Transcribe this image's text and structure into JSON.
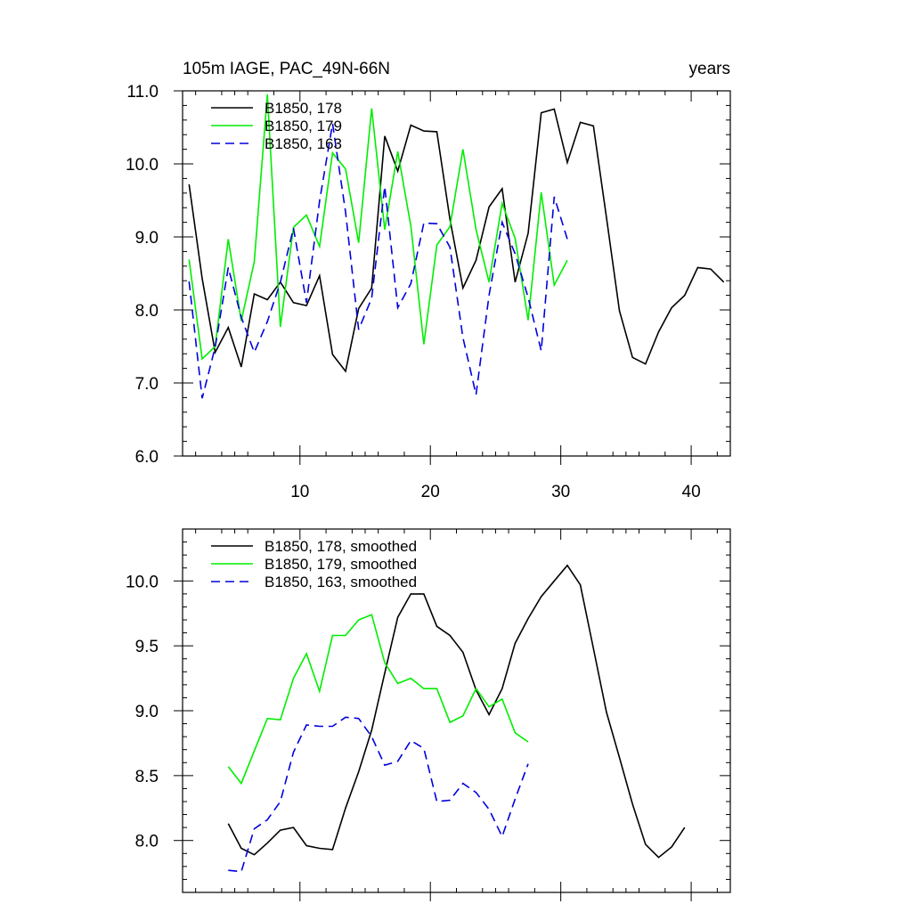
{
  "chart_data": [
    {
      "type": "line",
      "title": "105m IAGE, PAC_49N-66N",
      "title_right": "years",
      "xlim": [
        1,
        43
      ],
      "ylim": [
        6.0,
        11.0
      ],
      "yticks": [
        6.0,
        7.0,
        8.0,
        9.0,
        10.0,
        11.0
      ],
      "ytick_labels": [
        "6.0",
        "7.0",
        "8.0",
        "9.0",
        "10.0",
        "11.0"
      ],
      "xticks": [
        10,
        20,
        30,
        40
      ],
      "xtick_labels": [
        "10",
        "20",
        "30",
        "40"
      ],
      "legend_position": "top-left",
      "series": [
        {
          "name": "B1850, 178",
          "color": "#000000",
          "dash": "solid",
          "x": [
            1.5,
            2.5,
            3.5,
            4.5,
            5.5,
            6.5,
            7.5,
            8.5,
            9.5,
            10.5,
            11.5,
            12.5,
            13.5,
            14.5,
            15.5,
            16.5,
            17.5,
            18.5,
            19.5,
            20.5,
            21.5,
            22.5,
            23.5,
            24.5,
            25.5,
            26.5,
            27.5,
            28.5,
            29.5,
            30.5,
            31.5,
            32.5,
            33.5,
            34.5,
            35.5,
            36.5,
            37.5,
            38.5,
            39.5,
            40.5,
            41.5,
            42.5
          ],
          "y": [
            9.72,
            8.43,
            7.42,
            7.76,
            7.22,
            8.22,
            8.14,
            8.38,
            8.1,
            8.06,
            8.47,
            7.39,
            7.16,
            8.02,
            8.3,
            10.38,
            9.9,
            10.53,
            10.45,
            10.44,
            9.24,
            8.3,
            8.68,
            9.41,
            9.66,
            8.38,
            9.05,
            10.7,
            10.75,
            10.02,
            10.57,
            10.52,
            9.27,
            7.99,
            7.35,
            7.26,
            7.7,
            8.03,
            8.2,
            8.58,
            8.56,
            8.38
          ]
        },
        {
          "name": "B1850, 179",
          "color": "#00ee00",
          "dash": "solid",
          "x": [
            1.5,
            2.5,
            3.5,
            4.5,
            5.5,
            6.5,
            7.5,
            8.5,
            9.5,
            10.5,
            11.5,
            12.5,
            13.5,
            14.5,
            15.5,
            16.5,
            17.5,
            18.5,
            19.5,
            20.5,
            21.5,
            22.5,
            23.5,
            24.5,
            25.5,
            26.5,
            27.5,
            28.5,
            29.5,
            30.5
          ],
          "y": [
            8.69,
            7.33,
            7.5,
            8.97,
            7.85,
            8.66,
            10.95,
            7.77,
            9.13,
            9.3,
            8.87,
            10.15,
            9.93,
            8.92,
            10.76,
            9.1,
            10.17,
            9.15,
            7.53,
            8.89,
            9.14,
            10.2,
            9.1,
            8.38,
            9.46,
            8.98,
            7.86,
            9.61,
            8.34,
            8.68
          ]
        },
        {
          "name": "B1850, 163",
          "color": "#0000dd",
          "dash": "dashed",
          "x": [
            1.5,
            2.5,
            3.5,
            4.5,
            5.5,
            6.5,
            7.5,
            8.5,
            9.5,
            10.5,
            11.5,
            12.5,
            13.5,
            14.5,
            15.5,
            16.5,
            17.5,
            18.5,
            19.5,
            20.5,
            21.5,
            22.5,
            23.5,
            24.5,
            25.5,
            26.5,
            27.5,
            28.5,
            29.5,
            30.5
          ],
          "y": [
            8.39,
            6.79,
            7.49,
            8.58,
            7.9,
            7.42,
            7.84,
            8.38,
            9.12,
            8.1,
            9.49,
            10.55,
            9.34,
            7.73,
            8.16,
            9.69,
            8.03,
            8.36,
            9.19,
            9.18,
            8.86,
            7.62,
            6.84,
            8.2,
            9.2,
            8.77,
            8.17,
            7.44,
            9.55,
            8.97
          ]
        }
      ]
    },
    {
      "type": "line",
      "xlim": [
        1,
        43
      ],
      "ylim": [
        7.6,
        10.4
      ],
      "yticks": [
        8.0,
        8.5,
        9.0,
        9.5,
        10.0
      ],
      "ytick_labels": [
        "8.0",
        "8.5",
        "9.0",
        "9.5",
        "10.0"
      ],
      "xticks": [
        10,
        20,
        30,
        40
      ],
      "legend_position": "top-left",
      "series": [
        {
          "name": "B1850, 178, smoothed",
          "color": "#000000",
          "dash": "solid",
          "x": [
            4.5,
            5.5,
            6.5,
            7.5,
            8.5,
            9.5,
            10.5,
            11.5,
            12.5,
            13.5,
            14.5,
            15.5,
            16.5,
            17.5,
            18.5,
            19.5,
            20.5,
            21.5,
            22.5,
            23.5,
            24.5,
            25.5,
            26.5,
            27.5,
            28.5,
            29.5,
            30.5,
            31.5,
            32.5,
            33.5,
            34.5,
            35.5,
            36.5,
            37.5,
            38.5,
            39.5
          ],
          "y": [
            8.13,
            7.94,
            7.89,
            7.98,
            8.08,
            8.1,
            7.96,
            7.94,
            7.93,
            8.25,
            8.53,
            8.85,
            9.29,
            9.72,
            9.9,
            9.9,
            9.65,
            9.58,
            9.45,
            9.16,
            8.97,
            9.17,
            9.52,
            9.71,
            9.88,
            10.0,
            10.12,
            9.97,
            9.48,
            8.99,
            8.64,
            8.28,
            7.97,
            7.87,
            7.95,
            8.1
          ]
        },
        {
          "name": "B1850, 179, smoothed",
          "color": "#00ee00",
          "dash": "solid",
          "x": [
            4.5,
            5.5,
            6.5,
            7.5,
            8.5,
            9.5,
            10.5,
            11.5,
            12.5,
            13.5,
            14.5,
            15.5,
            16.5,
            17.5,
            18.5,
            19.5,
            20.5,
            21.5,
            22.5,
            23.5,
            24.5,
            25.5,
            26.5,
            27.5
          ],
          "y": [
            8.57,
            8.44,
            8.69,
            8.94,
            8.93,
            9.25,
            9.44,
            9.15,
            9.58,
            9.58,
            9.7,
            9.74,
            9.37,
            9.21,
            9.25,
            9.17,
            9.17,
            8.91,
            8.96,
            9.17,
            9.03,
            9.09,
            8.83,
            8.76
          ]
        },
        {
          "name": "B1850, 163, smoothed",
          "color": "#0000dd",
          "dash": "dashed",
          "x": [
            4.5,
            5.5,
            6.5,
            7.5,
            8.5,
            9.5,
            10.5,
            11.5,
            12.5,
            13.5,
            14.5,
            15.5,
            16.5,
            17.5,
            18.5,
            19.5,
            20.5,
            21.5,
            22.5,
            23.5,
            24.5,
            25.5,
            26.5,
            27.5
          ],
          "y": [
            7.77,
            7.76,
            8.09,
            8.16,
            8.3,
            8.68,
            8.89,
            8.88,
            8.88,
            8.95,
            8.94,
            8.8,
            8.58,
            8.61,
            8.77,
            8.71,
            8.3,
            8.31,
            8.44,
            8.37,
            8.24,
            8.03,
            8.32,
            8.59
          ]
        }
      ]
    }
  ]
}
